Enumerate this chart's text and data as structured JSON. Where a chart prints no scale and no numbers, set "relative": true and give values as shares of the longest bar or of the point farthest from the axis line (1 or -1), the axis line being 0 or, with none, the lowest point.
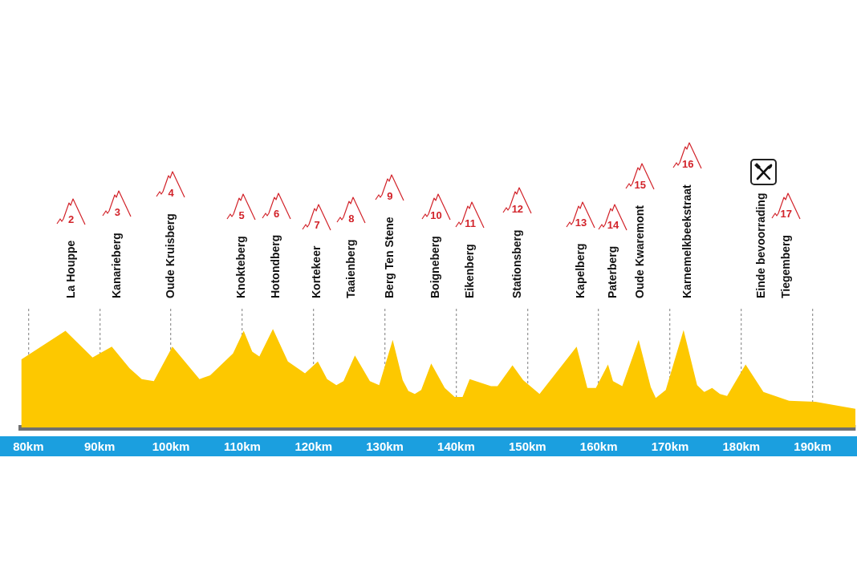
{
  "chart_data": {
    "type": "area",
    "relative": true,
    "color": "#fdc800",
    "marker": "none",
    "grid": "x",
    "x": [
      79,
      85.2,
      89,
      91.7,
      94.2,
      95.9,
      97.6,
      100.2,
      104,
      105.5,
      108.7,
      110.2,
      111.4,
      112.4,
      114.3,
      116.4,
      118.8,
      120.6,
      121.9,
      123.2,
      124.2,
      125.8,
      127.9,
      129.2,
      131.1,
      132.5,
      133.3,
      134.2,
      135.1,
      136.5,
      138.4,
      139.8,
      140.9,
      141.9,
      144.9,
      145.8,
      147.9,
      149.4,
      151.7,
      156.9,
      158.4,
      159.6,
      161.3,
      162,
      163.3,
      165.6,
      167.3,
      168,
      169.4,
      171.9,
      173.8,
      174.8,
      175.9,
      177,
      178,
      180.6,
      183.1,
      186.7,
      190.4,
      196
    ],
    "values": [
      0.69,
      0.98,
      0.71,
      0.82,
      0.6,
      0.49,
      0.47,
      0.82,
      0.49,
      0.53,
      0.75,
      0.98,
      0.77,
      0.72,
      1,
      0.67,
      0.55,
      0.67,
      0.49,
      0.43,
      0.47,
      0.73,
      0.47,
      0.43,
      0.89,
      0.48,
      0.37,
      0.34,
      0.38,
      0.65,
      0.4,
      0.31,
      0.31,
      0.49,
      0.42,
      0.42,
      0.63,
      0.48,
      0.34,
      0.82,
      0.4,
      0.4,
      0.64,
      0.47,
      0.42,
      0.89,
      0.41,
      0.3,
      0.38,
      0.99,
      0.43,
      0.36,
      0.4,
      0.34,
      0.32,
      0.64,
      0.36,
      0.27,
      0.26,
      0.19
    ],
    "xlim": [
      79,
      196
    ],
    "xticks": [
      {
        "value": 80,
        "label": "80km"
      },
      {
        "value": 90,
        "label": "90km"
      },
      {
        "value": 100,
        "label": "100km"
      },
      {
        "value": 110,
        "label": "110km"
      },
      {
        "value": 120,
        "label": "120km"
      },
      {
        "value": 130,
        "label": "130km"
      },
      {
        "value": 140,
        "label": "140km"
      },
      {
        "value": 150,
        "label": "150km"
      },
      {
        "value": 160,
        "label": "160km"
      },
      {
        "value": 170,
        "label": "170km"
      },
      {
        "value": 180,
        "label": "180km"
      },
      {
        "value": 190,
        "label": "190km"
      }
    ],
    "annotations": [
      "La Houppe",
      "2",
      "Kanarieberg",
      "3",
      "Oude Kruisberg",
      "4",
      "Knokteberg",
      "5",
      "Hotondberg",
      "6",
      "Kortekeer",
      "7",
      "Taaienberg",
      "8",
      "Berg Ten Stene",
      "9",
      "Boigneberg",
      "10",
      "Eikenberg",
      "11",
      "Stationsberg",
      "12",
      "Kapelberg",
      "13",
      "Paterberg",
      "14",
      "Oude Kwaremont",
      "15",
      "Karnemelkbeekstraat",
      "16",
      "Einde bevoorrading",
      "Tiegemberg",
      "17"
    ]
  }
}
